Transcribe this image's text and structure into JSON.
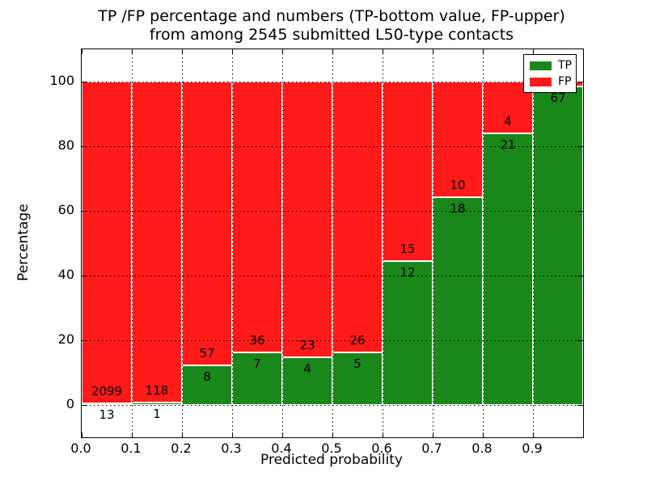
{
  "chart_data": {
    "type": "bar",
    "subtype": "stacked-percentage-histogram",
    "title_line1": "TP /FP percentage and numbers (TP-bottom value, FP-upper)",
    "title_line2": "from among 2545 submitted L50-type contacts",
    "total_submitted_contacts": 2545,
    "xlabel": "Predicted probability",
    "ylabel": "Percentage",
    "x_tick_labels": [
      "0.0",
      "0.1",
      "0.2",
      "0.3",
      "0.4",
      "0.5",
      "0.6",
      "0.7",
      "0.8",
      "0.9"
    ],
    "y_tick_values": [
      0,
      20,
      40,
      60,
      80,
      100
    ],
    "y_tick_labels": [
      "0",
      "20",
      "40",
      "60",
      "80",
      "100"
    ],
    "xlim": [
      0.0,
      1.0
    ],
    "ylim": [
      -10,
      110
    ],
    "grid": "dotted black, drawn over bars",
    "bar_edge_color": "#ffffff",
    "colors": {
      "tp": "#1a871a",
      "fp": "#ff1a1a"
    },
    "legend": {
      "position": "upper-right",
      "items": [
        {
          "label": "TP",
          "color": "#1a871a"
        },
        {
          "label": "FP",
          "color": "#ff1a1a"
        }
      ]
    },
    "bins": [
      {
        "range": [
          0.0,
          0.1
        ],
        "tp": 13,
        "fp": 2099,
        "tp_pct": 0.62,
        "fp_label_visible": true
      },
      {
        "range": [
          0.1,
          0.2
        ],
        "tp": 1,
        "fp": 118,
        "tp_pct": 0.84,
        "fp_label_visible": true
      },
      {
        "range": [
          0.2,
          0.3
        ],
        "tp": 8,
        "fp": 57,
        "tp_pct": 12.31,
        "fp_label_visible": true
      },
      {
        "range": [
          0.3,
          0.4
        ],
        "tp": 7,
        "fp": 36,
        "tp_pct": 16.28,
        "fp_label_visible": true
      },
      {
        "range": [
          0.4,
          0.5
        ],
        "tp": 4,
        "fp": 23,
        "tp_pct": 14.81,
        "fp_label_visible": true
      },
      {
        "range": [
          0.5,
          0.6
        ],
        "tp": 5,
        "fp": 26,
        "tp_pct": 16.13,
        "fp_label_visible": true
      },
      {
        "range": [
          0.6,
          0.7
        ],
        "tp": 12,
        "fp": 15,
        "tp_pct": 44.44,
        "fp_label_visible": true
      },
      {
        "range": [
          0.7,
          0.8
        ],
        "tp": 18,
        "fp": 10,
        "tp_pct": 64.29,
        "fp_label_visible": true
      },
      {
        "range": [
          0.8,
          0.9
        ],
        "tp": 21,
        "fp": 4,
        "tp_pct": 84.0,
        "fp_label_visible": true
      },
      {
        "range": [
          0.9,
          1.0
        ],
        "tp": 67,
        "fp": 1,
        "tp_pct": 98.53,
        "fp_label_visible": false
      }
    ]
  }
}
